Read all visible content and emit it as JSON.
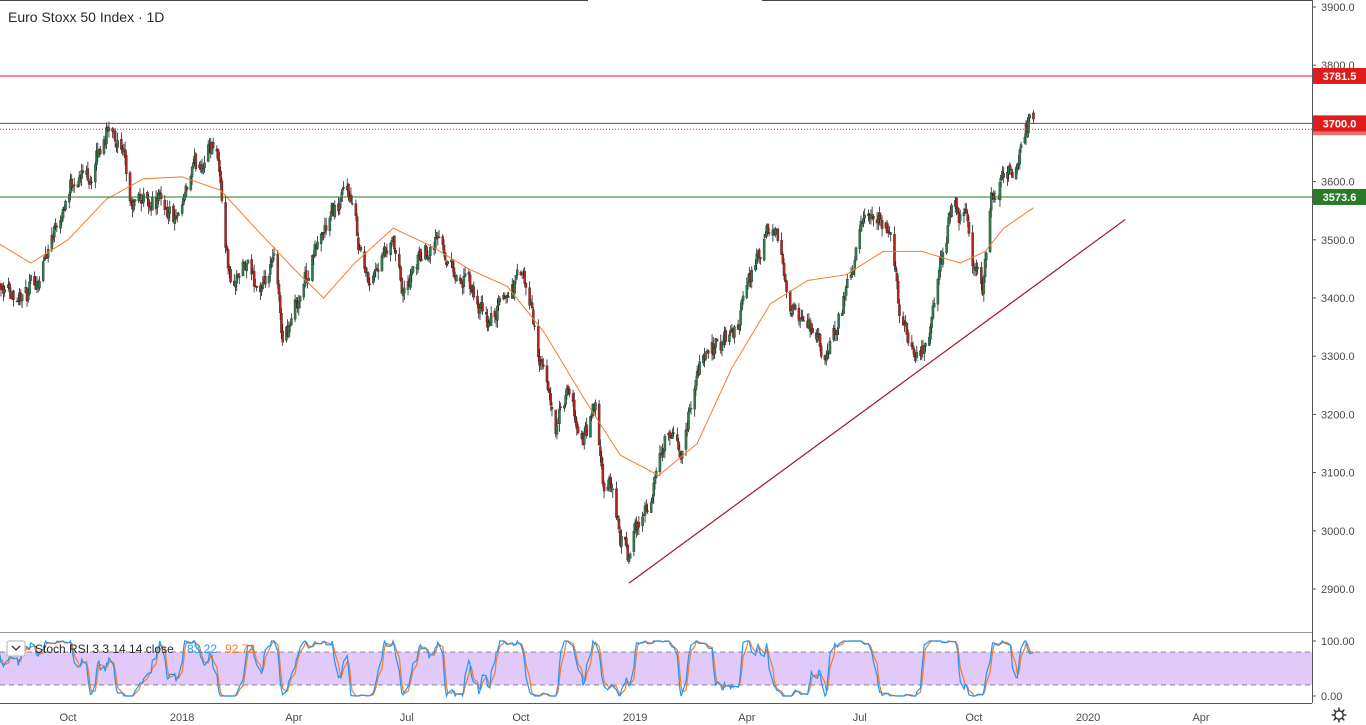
{
  "chart_data": {
    "type": "candlestick",
    "title": "Euro Stoxx 50 Index · 1D",
    "x_tick_labels": [
      "Oct",
      "2018",
      "Apr",
      "Jul",
      "Oct",
      "2019",
      "Apr",
      "Jul",
      "Oct",
      "2020",
      "Apr"
    ],
    "x_tick_dates": [
      "2017-10-01",
      "2018-01-01",
      "2018-04-01",
      "2018-07-01",
      "2018-10-01",
      "2019-01-01",
      "2019-04-01",
      "2019-07-01",
      "2019-10-01",
      "2020-01-01",
      "2020-04-01"
    ],
    "y_tick_labels": [
      "2900.0",
      "3000.0",
      "3100.0",
      "3200.0",
      "3300.0",
      "3400.0",
      "3500.0",
      "3600.0",
      "3700.0",
      "3800.0",
      "3900.0"
    ],
    "ylim": [
      2830,
      3910
    ],
    "close_path": [
      [
        "2017-08-01",
        3450
      ],
      [
        "2017-08-15",
        3420
      ],
      [
        "2017-08-29",
        3400
      ],
      [
        "2017-09-08",
        3440
      ],
      [
        "2017-09-22",
        3540
      ],
      [
        "2017-10-06",
        3610
      ],
      [
        "2017-10-20",
        3615
      ],
      [
        "2017-11-01",
        3685
      ],
      [
        "2017-11-07",
        3695
      ],
      [
        "2017-11-14",
        3640
      ],
      [
        "2017-11-21",
        3550
      ],
      [
        "2017-11-30",
        3570
      ],
      [
        "2017-12-08",
        3570
      ],
      [
        "2017-12-18",
        3560
      ],
      [
        "2017-12-29",
        3520
      ],
      [
        "2018-01-09",
        3610
      ],
      [
        "2018-01-23",
        3660
      ],
      [
        "2018-01-29",
        3670
      ],
      [
        "2018-02-05",
        3500
      ],
      [
        "2018-02-09",
        3420
      ],
      [
        "2018-02-20",
        3450
      ],
      [
        "2018-02-27",
        3430
      ],
      [
        "2018-03-08",
        3410
      ],
      [
        "2018-03-16",
        3460
      ],
      [
        "2018-03-23",
        3330
      ],
      [
        "2018-03-29",
        3360
      ],
      [
        "2018-04-06",
        3410
      ],
      [
        "2018-04-20",
        3490
      ],
      [
        "2018-05-04",
        3550
      ],
      [
        "2018-05-15",
        3580
      ],
      [
        "2018-05-25",
        3480
      ],
      [
        "2018-05-30",
        3430
      ],
      [
        "2018-06-08",
        3460
      ],
      [
        "2018-06-20",
        3480
      ],
      [
        "2018-06-28",
        3400
      ],
      [
        "2018-07-10",
        3460
      ],
      [
        "2018-07-25",
        3510
      ],
      [
        "2018-08-10",
        3440
      ],
      [
        "2018-08-20",
        3420
      ],
      [
        "2018-09-04",
        3350
      ],
      [
        "2018-09-18",
        3400
      ],
      [
        "2018-10-01",
        3440
      ],
      [
        "2018-10-10",
        3370
      ],
      [
        "2018-10-20",
        3250
      ],
      [
        "2018-10-29",
        3180
      ],
      [
        "2018-11-07",
        3230
      ],
      [
        "2018-11-20",
        3150
      ],
      [
        "2018-11-30",
        3210
      ],
      [
        "2018-12-06",
        3070
      ],
      [
        "2018-12-14",
        3070
      ],
      [
        "2018-12-20",
        2990
      ],
      [
        "2018-12-27",
        2950
      ],
      [
        "2019-01-04",
        3020
      ],
      [
        "2019-01-15",
        3060
      ],
      [
        "2019-01-25",
        3150
      ],
      [
        "2019-02-08",
        3140
      ],
      [
        "2019-02-20",
        3280
      ],
      [
        "2019-03-01",
        3300
      ],
      [
        "2019-03-15",
        3330
      ],
      [
        "2019-03-25",
        3350
      ],
      [
        "2019-04-05",
        3440
      ],
      [
        "2019-04-17",
        3500
      ],
      [
        "2019-04-24",
        3510
      ],
      [
        "2019-05-02",
        3430
      ],
      [
        "2019-05-13",
        3350
      ],
      [
        "2019-05-24",
        3350
      ],
      [
        "2019-06-03",
        3280
      ],
      [
        "2019-06-14",
        3370
      ],
      [
        "2019-06-25",
        3440
      ],
      [
        "2019-07-04",
        3530
      ],
      [
        "2019-07-16",
        3520
      ],
      [
        "2019-07-26",
        3510
      ],
      [
        "2019-08-02",
        3380
      ],
      [
        "2019-08-13",
        3310
      ],
      [
        "2019-08-26",
        3330
      ],
      [
        "2019-09-06",
        3480
      ],
      [
        "2019-09-13",
        3550
      ],
      [
        "2019-09-24",
        3540
      ],
      [
        "2019-10-01",
        3450
      ],
      [
        "2019-10-08",
        3420
      ],
      [
        "2019-10-15",
        3570
      ],
      [
        "2019-10-24",
        3600
      ],
      [
        "2019-11-04",
        3620
      ],
      [
        "2019-11-11",
        3690
      ],
      [
        "2019-11-14",
        3700
      ],
      [
        "2019-11-18",
        3690
      ]
    ],
    "moving_average": {
      "color": "#f57c2c",
      "points": [
        [
          "2017-08-01",
          3500
        ],
        [
          "2017-09-01",
          3460
        ],
        [
          "2017-10-01",
          3500
        ],
        [
          "2017-11-01",
          3570
        ],
        [
          "2017-12-01",
          3605
        ],
        [
          "2018-01-01",
          3608
        ],
        [
          "2018-02-01",
          3585
        ],
        [
          "2018-03-01",
          3520
        ],
        [
          "2018-04-01",
          3450
        ],
        [
          "2018-04-25",
          3400
        ],
        [
          "2018-05-20",
          3460
        ],
        [
          "2018-06-20",
          3520
        ],
        [
          "2018-07-20",
          3490
        ],
        [
          "2018-08-20",
          3450
        ],
        [
          "2018-09-20",
          3420
        ],
        [
          "2018-10-20",
          3340
        ],
        [
          "2018-11-20",
          3230
        ],
        [
          "2018-12-20",
          3130
        ],
        [
          "2019-01-20",
          3095
        ],
        [
          "2019-02-20",
          3150
        ],
        [
          "2019-03-20",
          3280
        ],
        [
          "2019-04-20",
          3390
        ],
        [
          "2019-05-20",
          3430
        ],
        [
          "2019-06-20",
          3440
        ],
        [
          "2019-07-20",
          3480
        ],
        [
          "2019-08-20",
          3480
        ],
        [
          "2019-09-20",
          3460
        ],
        [
          "2019-10-10",
          3480
        ],
        [
          "2019-10-25",
          3520
        ],
        [
          "2019-11-18",
          3555
        ]
      ]
    },
    "trendline": {
      "color": "#a3152d",
      "from": [
        "2018-12-27",
        2910
      ],
      "to": [
        "2020-01-31",
        3535
      ]
    },
    "horizontal_lines": [
      {
        "label": "3781.5",
        "value": 3781.5,
        "color": "#e01b1b"
      },
      {
        "label": "3700.0",
        "value": 3700.0,
        "color": "#e01b1b"
      },
      {
        "label": "3573.6",
        "value": 3573.6,
        "color": "#2a7a2a"
      }
    ],
    "dotted_line": {
      "value": 3690,
      "color": "#c0392b"
    },
    "indicator": {
      "name": "Stoch RSI 3 3 14 14 close",
      "k_value": "83.22",
      "d_value": "92.72",
      "k_color": "#2196f3",
      "d_color": "#f57c2c",
      "y_tick_labels": [
        "100.00",
        "0.00"
      ],
      "upper_band": 80,
      "lower_band": 20,
      "band_color": "#e1c9fa"
    },
    "colors": {
      "up": "#2e7d4f",
      "down": "#b3261e",
      "grid": "#eeeeee",
      "axis": "#555555"
    }
  }
}
